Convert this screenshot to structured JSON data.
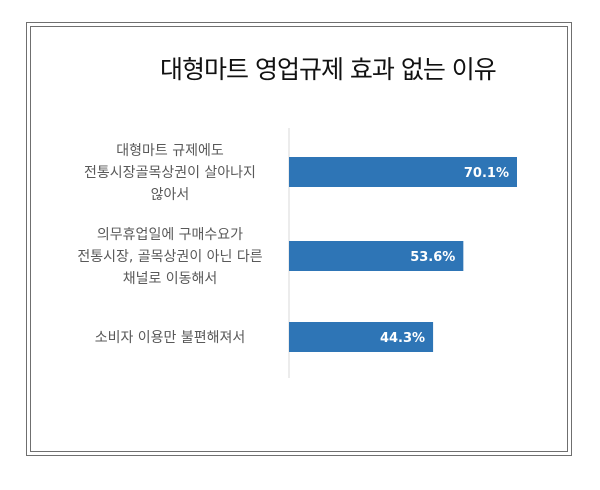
{
  "chart_data": {
    "type": "bar",
    "orientation": "horizontal",
    "title": "대형마트 영업규제 효과 없는 이유",
    "categories": [
      [
        "대형마트 규제에도",
        "전통시장골목상권이 살아나지",
        "않아서"
      ],
      [
        "의무휴업일에 구매수요가",
        "전통시장, 골목상권이 아닌 다른",
        "채널로 이동해서"
      ],
      [
        "소비자 이용만 불편해져서"
      ]
    ],
    "values": [
      70.1,
      53.6,
      44.3
    ],
    "value_labels": [
      "70.1%",
      "53.6%",
      "44.3%"
    ],
    "xlim": [
      0,
      80
    ],
    "bar_color": "#2e75b6",
    "grid": false
  }
}
